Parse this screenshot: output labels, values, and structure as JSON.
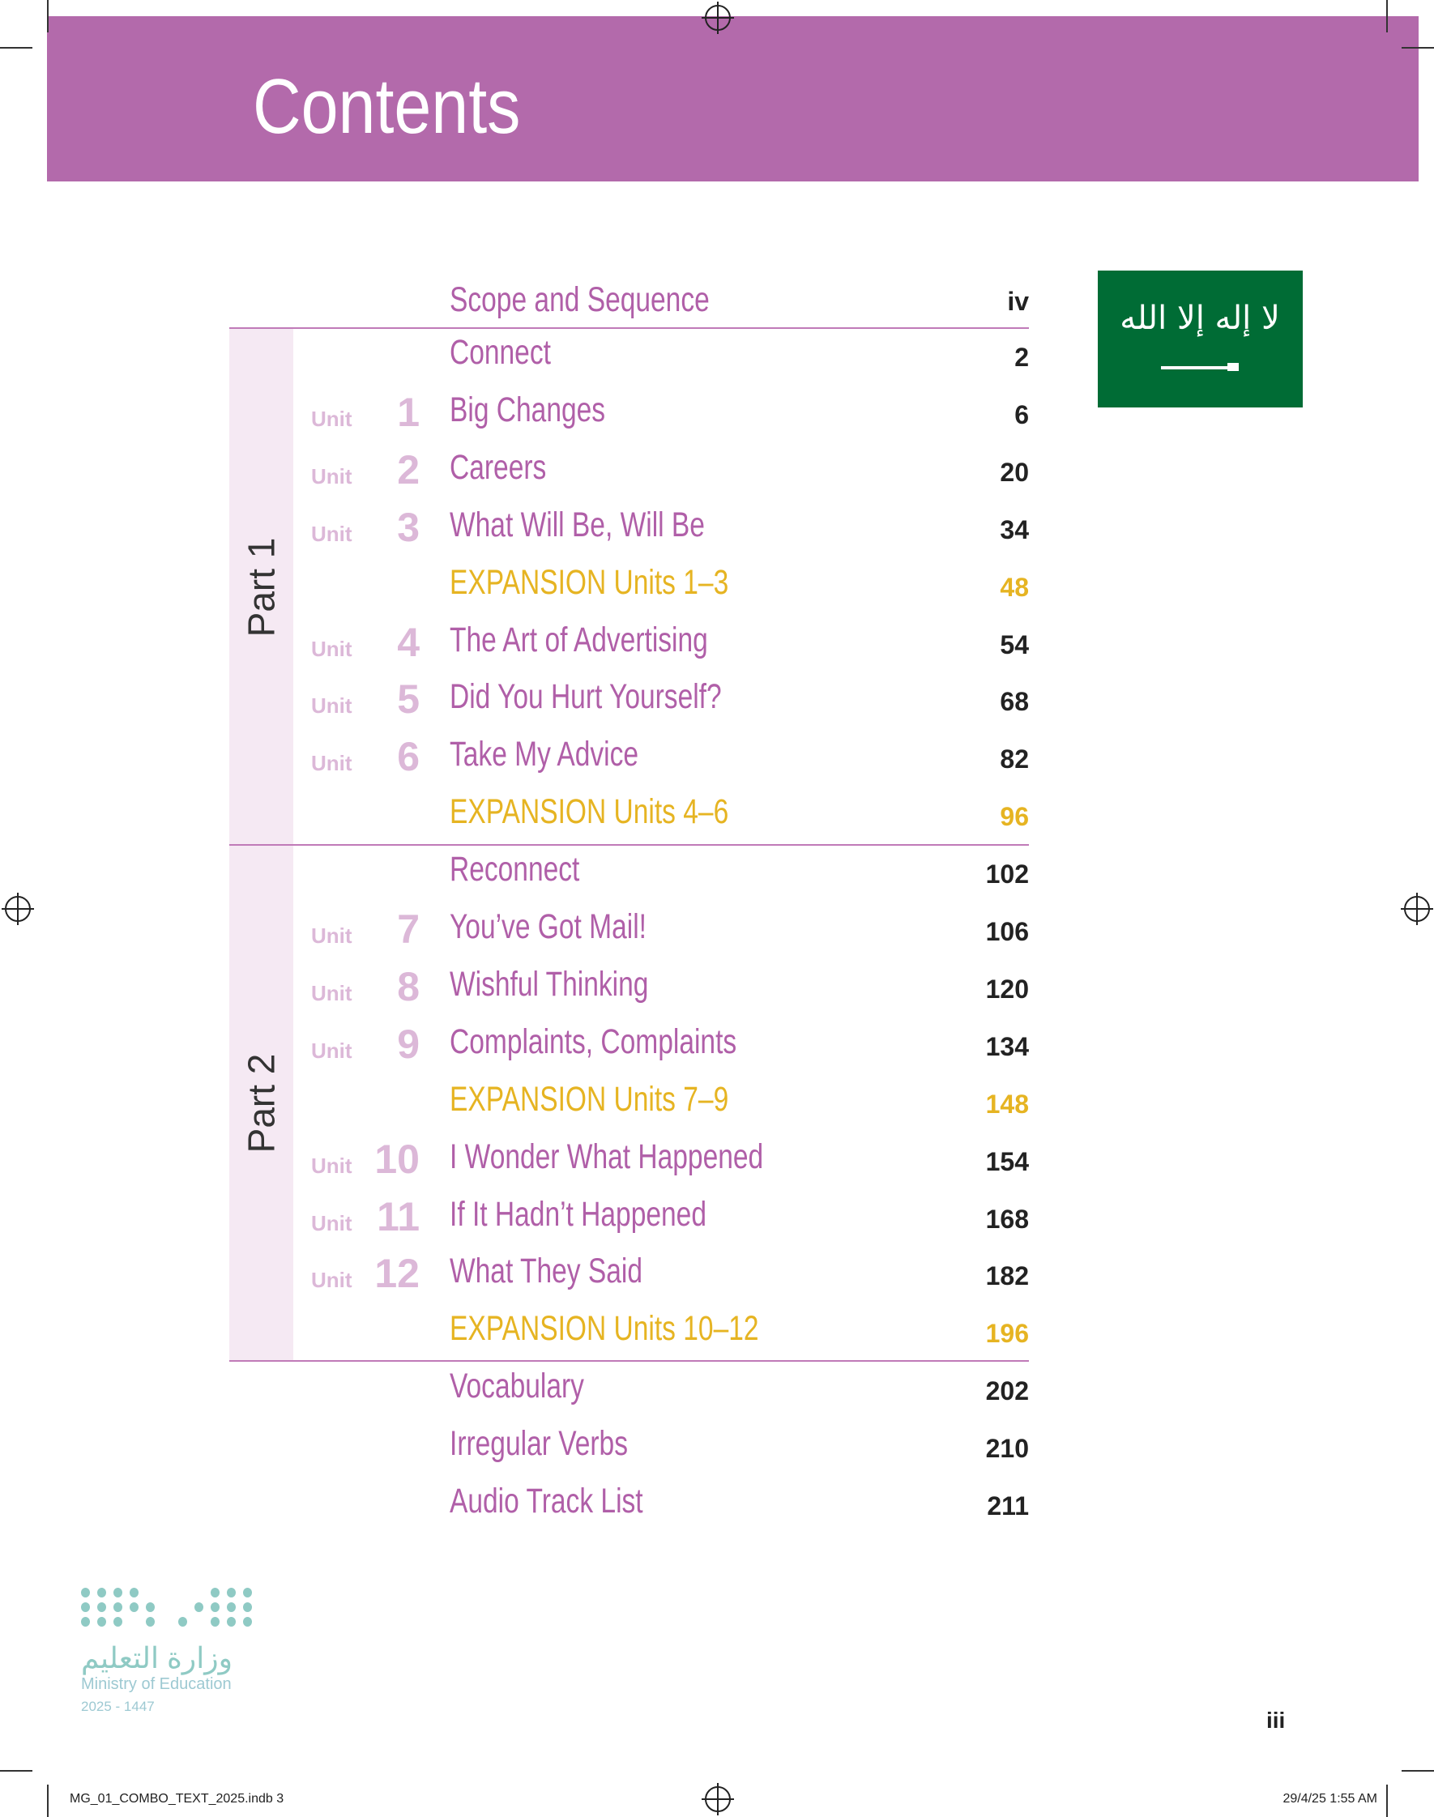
{
  "header": {
    "title": "Contents",
    "color": "#b36aab"
  },
  "flag": {
    "icon": "saudi-flag",
    "color": "#006c35"
  },
  "colors": {
    "title": "#b05fa8",
    "unit": "#dcb8d8",
    "expansion": "#e6b422",
    "part_bg": "#f5e9f3"
  },
  "parts": [
    {
      "label": "Part 1"
    },
    {
      "label": "Part 2"
    }
  ],
  "rows": [
    {
      "title": "Scope and Sequence",
      "page": "iv"
    },
    {
      "title": "Connect",
      "page": "2"
    },
    {
      "unit": "Unit",
      "num": "1",
      "title": "Big Changes",
      "page": "6"
    },
    {
      "unit": "Unit",
      "num": "2",
      "title": "Careers",
      "page": "20"
    },
    {
      "unit": "Unit",
      "num": "3",
      "title": "What Will Be, Will Be",
      "page": "34"
    },
    {
      "title": "EXPANSION Units 1–3",
      "page": "48",
      "expansion": true
    },
    {
      "unit": "Unit",
      "num": "4",
      "title": "The Art of Advertising",
      "page": "54"
    },
    {
      "unit": "Unit",
      "num": "5",
      "title": "Did You Hurt Yourself?",
      "page": "68"
    },
    {
      "unit": "Unit",
      "num": "6",
      "title": "Take My Advice",
      "page": "82"
    },
    {
      "title": "EXPANSION Units 4–6",
      "page": "96",
      "expansion": true
    },
    {
      "title": "Reconnect",
      "page": "102"
    },
    {
      "unit": "Unit",
      "num": "7",
      "title": "You’ve Got Mail!",
      "page": "106"
    },
    {
      "unit": "Unit",
      "num": "8",
      "title": "Wishful Thinking",
      "page": "120"
    },
    {
      "unit": "Unit",
      "num": "9",
      "title": "Complaints, Complaints",
      "page": "134"
    },
    {
      "title": "EXPANSION Units 7–9",
      "page": "148",
      "expansion": true
    },
    {
      "unit": "Unit",
      "num": "10",
      "title": "I Wonder What Happened",
      "page": "154"
    },
    {
      "unit": "Unit",
      "num": "11",
      "title": "If It Hadn’t Happened",
      "page": "168"
    },
    {
      "unit": "Unit",
      "num": "12",
      "title": "What They Said",
      "page": "182"
    },
    {
      "title": "EXPANSION Units 10–12",
      "page": "196",
      "expansion": true
    },
    {
      "title": "Vocabulary",
      "page": "202"
    },
    {
      "title": "Irregular Verbs",
      "page": "210"
    },
    {
      "title": "Audio Track List",
      "page": "211"
    }
  ],
  "logo": {
    "arabic": "وزارة التعليم",
    "english": "Ministry of Education",
    "year": "2025 - 1447"
  },
  "folio": "iii",
  "slug": {
    "left": "MG_01_COMBO_TEXT_2025.indb   3",
    "right": "29/4/25   1:55 AM"
  }
}
